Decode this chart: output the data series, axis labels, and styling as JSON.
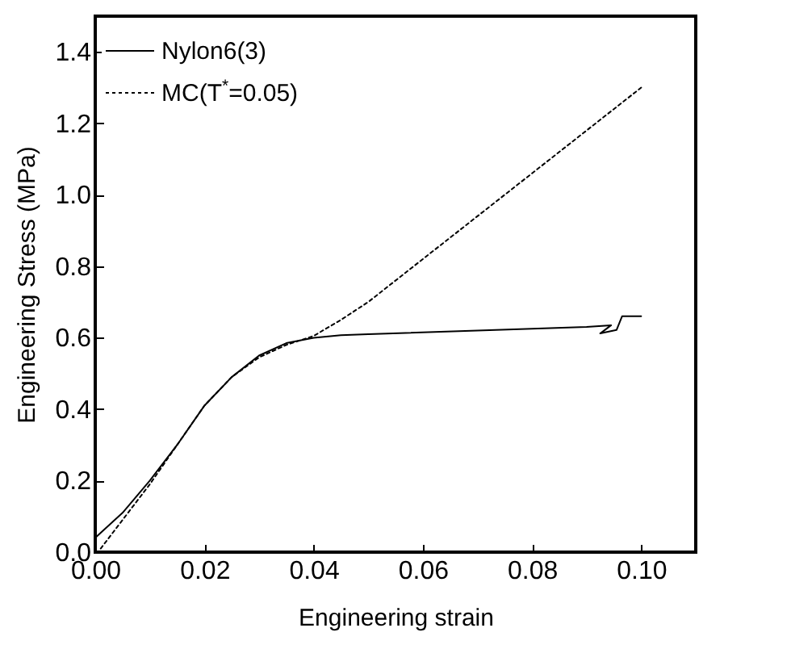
{
  "chart_data": {
    "type": "line",
    "xlabel": "Engineering strain",
    "ylabel": "Engineering Stress (MPa)",
    "xlim": [
      0,
      0.11
    ],
    "ylim": [
      0,
      1.5
    ],
    "xticks": [
      {
        "value": 0,
        "label": "0.00"
      },
      {
        "value": 0.02,
        "label": "0.02"
      },
      {
        "value": 0.04,
        "label": "0.04"
      },
      {
        "value": 0.06,
        "label": "0.06"
      },
      {
        "value": 0.08,
        "label": "0.08"
      },
      {
        "value": 0.1,
        "label": "0.10"
      }
    ],
    "yticks": [
      {
        "value": 0,
        "label": "0.0"
      },
      0.2,
      0.4,
      0.6,
      0.8,
      {
        "value": 1,
        "label": "1.0"
      },
      1.2,
      1.4
    ],
    "grid": false,
    "legend": "top left",
    "series": [
      {
        "name": "Nylon6(3)",
        "color": "#000000",
        "line_style": "solid",
        "x": [
          0,
          0.005,
          0.01,
          0.015,
          0.02,
          0.025,
          0.03,
          0.035,
          0.04,
          0.045,
          0.05,
          0.07,
          0.09,
          0.0945,
          0.0925,
          0.0955,
          0.0965,
          0.1
        ],
        "values": [
          0.04,
          0.11,
          0.2,
          0.3,
          0.41,
          0.49,
          0.55,
          0.585,
          0.6,
          0.607,
          0.61,
          0.62,
          0.63,
          0.635,
          0.612,
          0.622,
          0.66,
          0.66
        ]
      },
      {
        "name": "MC(T$^{*}$=0.05)",
        "color": "#000000",
        "line_style": "dotted",
        "x": [
          0.001,
          0.005,
          0.01,
          0.015,
          0.02,
          0.025,
          0.03,
          0.035,
          0.04,
          0.045,
          0.05,
          0.06,
          0.07,
          0.08,
          0.09,
          0.1
        ],
        "values": [
          0.01,
          0.09,
          0.19,
          0.3,
          0.41,
          0.49,
          0.545,
          0.58,
          0.605,
          0.65,
          0.7,
          0.82,
          0.94,
          1.06,
          1.18,
          1.3
        ]
      }
    ]
  }
}
